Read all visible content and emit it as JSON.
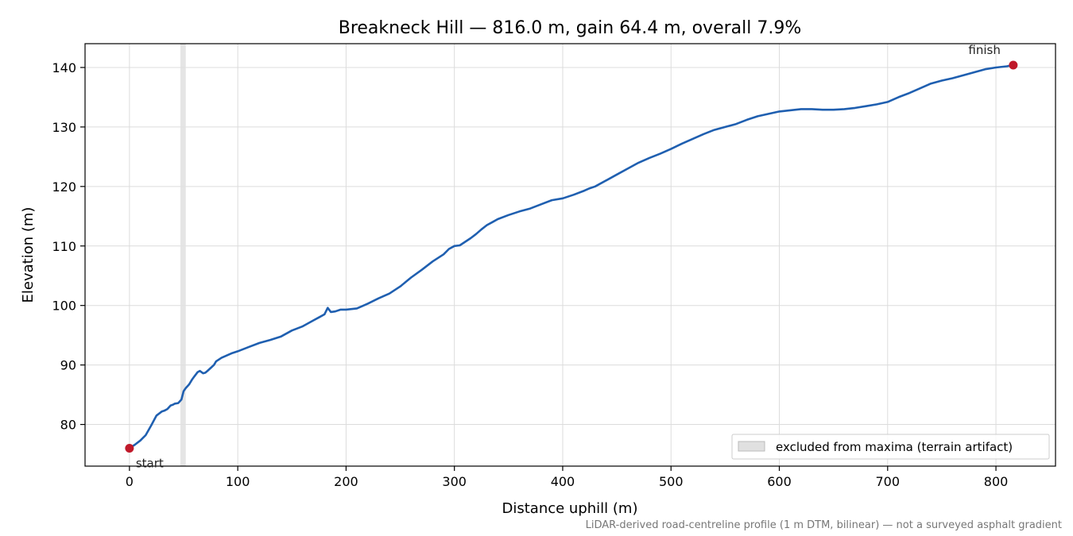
{
  "chart_data": {
    "type": "line",
    "title": "Breakneck Hill — 816.0 m, gain 64.4 m, overall 7.9%",
    "xlabel": "Distance uphill (m)",
    "ylabel": "Elevation (m)",
    "xlim": [
      -41,
      855
    ],
    "ylim": [
      73,
      144
    ],
    "xticks": [
      0,
      100,
      200,
      300,
      400,
      500,
      600,
      700,
      800
    ],
    "yticks": [
      80,
      90,
      100,
      110,
      120,
      130,
      140
    ],
    "grid": true,
    "line_color": "#1f5fb0",
    "marker_color": "#c0192a",
    "excluded_band": {
      "x": [
        47,
        52
      ],
      "color": "#e0e0e0",
      "label": "excluded from maxima (terrain artifact)"
    },
    "legend_position": "lower-right",
    "series": [
      {
        "x": [
          0,
          5,
          10,
          15,
          20,
          25,
          30,
          32,
          35,
          38,
          40,
          42,
          45,
          48,
          50,
          52,
          55,
          58,
          60,
          63,
          65,
          68,
          70,
          72,
          75,
          78,
          80,
          85,
          90,
          95,
          100,
          110,
          120,
          130,
          140,
          150,
          160,
          170,
          175,
          180,
          183,
          186,
          190,
          195,
          200,
          210,
          215,
          220,
          230,
          240,
          250,
          260,
          270,
          280,
          290,
          295,
          300,
          305,
          310,
          315,
          320,
          325,
          330,
          335,
          340,
          350,
          360,
          370,
          380,
          390,
          400,
          410,
          420,
          425,
          430,
          440,
          450,
          460,
          470,
          480,
          490,
          500,
          510,
          520,
          530,
          540,
          550,
          560,
          570,
          580,
          590,
          600,
          610,
          620,
          630,
          640,
          650,
          660,
          670,
          680,
          690,
          700,
          710,
          720,
          730,
          740,
          750,
          760,
          770,
          780,
          790,
          800,
          810,
          816
        ],
        "y": [
          76.0,
          76.6,
          77.3,
          78.2,
          79.8,
          81.5,
          82.2,
          82.3,
          82.6,
          83.2,
          83.3,
          83.5,
          83.6,
          84.2,
          85.6,
          86.1,
          86.7,
          87.6,
          88.1,
          88.8,
          89.0,
          88.6,
          88.7,
          89.0,
          89.5,
          90.0,
          90.6,
          91.2,
          91.6,
          92.0,
          92.3,
          93.0,
          93.7,
          94.2,
          94.8,
          95.8,
          96.5,
          97.5,
          98.0,
          98.5,
          99.6,
          98.9,
          99.0,
          99.3,
          99.3,
          99.5,
          99.9,
          100.3,
          101.2,
          102.0,
          103.2,
          104.7,
          106.0,
          107.4,
          108.6,
          109.5,
          110.0,
          110.1,
          110.7,
          111.3,
          112.0,
          112.8,
          113.5,
          114.0,
          114.5,
          115.2,
          115.8,
          116.3,
          117.0,
          117.7,
          118.0,
          118.6,
          119.3,
          119.7,
          120.0,
          121.0,
          122.0,
          123.0,
          124.0,
          124.8,
          125.5,
          126.3,
          127.2,
          128.0,
          128.8,
          129.5,
          130.0,
          130.5,
          131.2,
          131.8,
          132.2,
          132.6,
          132.8,
          133.0,
          133.0,
          132.9,
          132.9,
          133.0,
          133.2,
          133.5,
          133.8,
          134.2,
          135.0,
          135.7,
          136.5,
          137.3,
          137.8,
          138.2,
          138.7,
          139.2,
          139.7,
          140.0,
          140.2,
          140.4
        ]
      }
    ],
    "points": [
      {
        "name": "start",
        "x": 0,
        "y": 76.0
      },
      {
        "name": "finish",
        "x": 816,
        "y": 140.4
      }
    ],
    "footnote": "LiDAR-derived road-centreline profile (1 m DTM, bilinear) — not a surveyed asphalt gradient"
  }
}
